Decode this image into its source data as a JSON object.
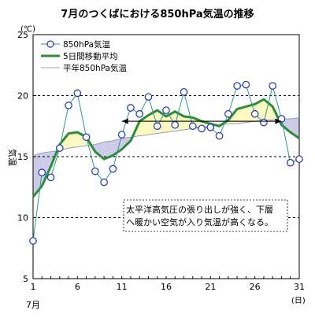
{
  "chart_data": {
    "type": "line",
    "title": "7月のつくばにおける850hPa気温の推移",
    "unit_label": "(℃)",
    "ylabel": "気温",
    "x_unit_label": "(日)",
    "month_label": "7月",
    "ylim": [
      5,
      25
    ],
    "y_ticks": [
      5,
      10,
      15,
      20,
      25
    ],
    "xlim": [
      1,
      31
    ],
    "x_ticks": [
      1,
      6,
      11,
      16,
      21,
      26,
      31
    ],
    "grid": {
      "horizontal_dashed_at": [
        10,
        15,
        20
      ]
    },
    "x": [
      1,
      2,
      3,
      4,
      5,
      6,
      7,
      8,
      9,
      10,
      11,
      12,
      13,
      14,
      15,
      16,
      17,
      18,
      19,
      20,
      21,
      22,
      23,
      24,
      25,
      26,
      27,
      28,
      29,
      30,
      31
    ],
    "series": [
      {
        "name": "850hPa気温",
        "color": "#2a9a8a",
        "marker": "circle",
        "values": [
          8.1,
          13.7,
          13.3,
          15.7,
          19.2,
          20.2,
          16.6,
          13.8,
          12.9,
          14.0,
          16.8,
          19.0,
          18.5,
          19.9,
          17.5,
          18.8,
          17.6,
          20.3,
          17.5,
          17.3,
          17.4,
          16.7,
          18.5,
          20.8,
          20.9,
          18.5,
          17.8,
          20.8,
          18.1,
          14.5,
          14.8
        ]
      },
      {
        "name": "5日間移動平均",
        "color": "#2e8b3a",
        "values": [
          11.7,
          12.6,
          14.2,
          16.0,
          16.9,
          17.0,
          16.6,
          15.4,
          14.8,
          15.1,
          15.6,
          16.3,
          17.9,
          18.4,
          18.8,
          18.3,
          18.7,
          18.3,
          18.2,
          17.9,
          17.7,
          17.5,
          18.0,
          18.9,
          19.1,
          19.3,
          19.7,
          19.1,
          17.6,
          17.0,
          16.5
        ]
      },
      {
        "name": "平年850hPa気温",
        "color": "#9a9ac8",
        "values": [
          15.1,
          15.3,
          15.4,
          15.5,
          15.7,
          15.8,
          15.9,
          16.0,
          16.2,
          16.3,
          16.5,
          16.6,
          16.7,
          16.8,
          16.9,
          17.0,
          17.1,
          17.2,
          17.3,
          17.4,
          17.5,
          17.6,
          17.7,
          17.7,
          17.8,
          17.9,
          18.0,
          18.0,
          18.1,
          18.1,
          18.2
        ]
      }
    ],
    "fill_colors": {
      "above_normal": "#fafac0",
      "below_normal": "#cccce8"
    },
    "annotation": {
      "text_line1": "太平洋高気圧の張り出しが強く、下層",
      "text_line2": "へ暖かい空気が入り気温が高くなる。",
      "arrow_from_day": 11,
      "arrow_to_day": 29,
      "arrow_value": 17.9
    }
  }
}
